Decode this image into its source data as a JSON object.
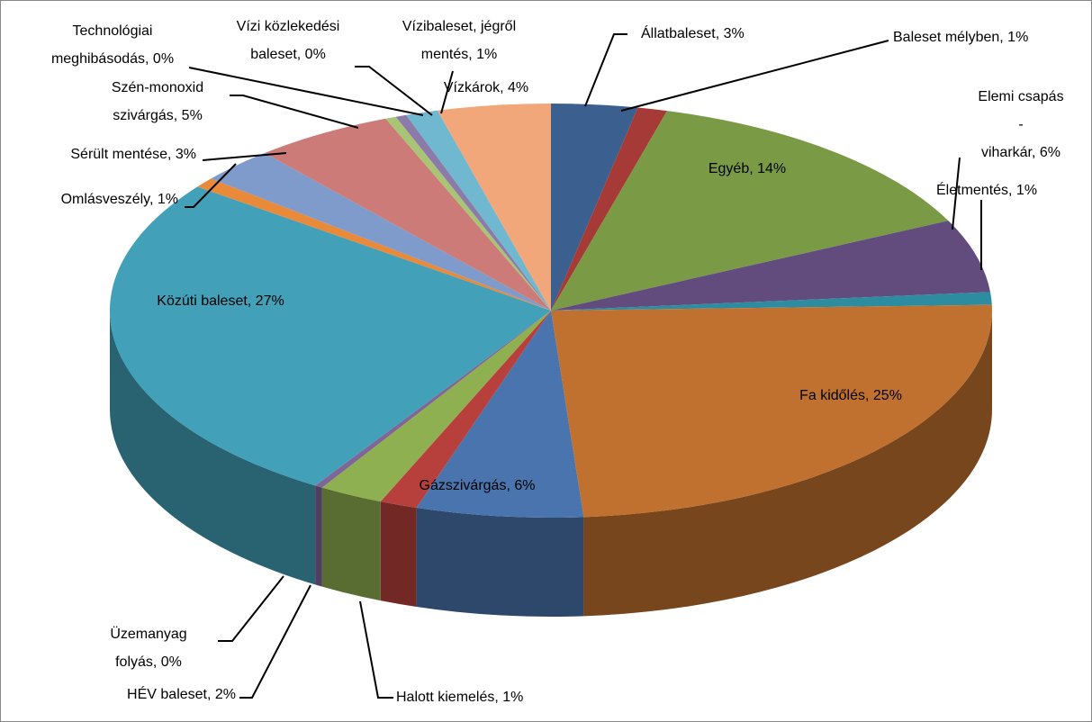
{
  "chart_data": {
    "type": "pie3d",
    "labels": [
      [
        "Állatbaleset, 3%"
      ],
      [
        "Baleset mélyben, 1%"
      ],
      [
        "Egyéb, 14%"
      ],
      [
        "Elemi csapás",
        "-",
        "viharkár, 6%"
      ],
      [
        "Életmentés, 1%"
      ],
      [
        "Fa kidőlés, 25%"
      ],
      [
        "Gázszivárgás, 6%"
      ],
      [
        "Halott kiemelés, 1%"
      ],
      [
        "HÉV baleset, 2%"
      ],
      [
        "Üzemanyag",
        "folyás, 0%"
      ],
      [
        "Közúti baleset, 27%"
      ],
      [
        "Omlásveszély, 1%"
      ],
      [
        "Sérült mentése, 3%"
      ],
      [
        "Szén-monoxid",
        "szivárgás, 5%"
      ],
      [
        "Technológiai",
        "meghibásodás, 0%"
      ],
      [
        "Vízi közlekedési",
        "baleset, 0%"
      ],
      [
        "Vízibaleset, jégről",
        "mentés, 1%"
      ],
      [
        "Vízkárok, 4%"
      ]
    ],
    "values": [
      3.2,
      1.1,
      13.8,
      5.8,
      1.0,
      24.6,
      6.2,
      1.4,
      2.4,
      0.3,
      26.6,
      0.8,
      2.8,
      5.2,
      0.4,
      0.4,
      1.2,
      4.2
    ],
    "colors": [
      "#3b5f8f",
      "#a63a36",
      "#7a9a45",
      "#624b7d",
      "#2e8ca0",
      "#c0712f",
      "#4a74ad",
      "#b8403c",
      "#8fb050",
      "#7e6699",
      "#42a0b8",
      "#e9893a",
      "#7f9bcb",
      "#cc7b79",
      "#a9c474",
      "#8c7aa8",
      "#6fb8d0",
      "#f2a77a"
    ]
  }
}
